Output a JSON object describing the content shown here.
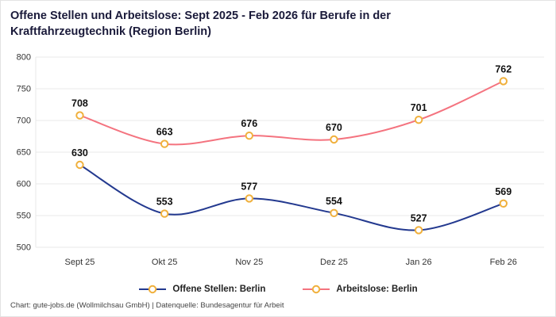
{
  "title": "Offene Stellen und Arbeitslose: Sept 2025 - Feb 2026 für Berufe in der Kraftfahrzeugtechnik (Region Berlin)",
  "footer": "Chart: gute-jobs.de (Wollmilchsau GmbH) | Datenquelle: Bundesagentur für Arbeit",
  "colors": {
    "offene_stellen": "#23398f",
    "arbeitslose": "#f4737f",
    "marker_ring": "#f0b03c",
    "marker_fill": "#ffffff",
    "grid": "#e8e8e8",
    "tick_text": "#333333",
    "data_label": "#111111"
  },
  "chart_data": {
    "type": "line",
    "categories": [
      "Sept 25",
      "Okt 25",
      "Nov 25",
      "Dez 25",
      "Jan 26",
      "Feb 26"
    ],
    "series": [
      {
        "name": "Offene Stellen: Berlin",
        "color": "#23398f",
        "values": [
          630,
          553,
          577,
          554,
          527,
          569
        ]
      },
      {
        "name": "Arbeitslose: Berlin",
        "color": "#f4737f",
        "values": [
          708,
          663,
          676,
          670,
          701,
          762
        ]
      }
    ],
    "title": "Offene Stellen und Arbeitslose: Sept 2025 - Feb 2026 für Berufe in der Kraftfahrzeugtechnik (Region Berlin)",
    "xlabel": "",
    "ylabel": "",
    "ylim": [
      500,
      800
    ],
    "yticks": [
      500,
      550,
      600,
      650,
      700,
      750,
      800
    ],
    "grid": true,
    "legend_position": "bottom",
    "smooth": true,
    "data_labels": true
  }
}
